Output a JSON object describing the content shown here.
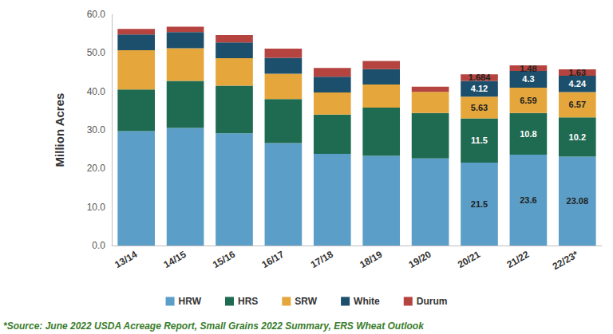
{
  "chart_data": {
    "type": "bar",
    "stacked": true,
    "grid": false,
    "legend": "bottom",
    "data_labels": true,
    "y_label": "Million Acres",
    "annotations": [
      "*Source: June 2022 USDA Acreage Report, Small Grains 2022 Summary, ERS Wheat Outlook"
    ],
    "categories": [
      "13/14",
      "14/15",
      "15/16",
      "16/17",
      "17/18",
      "18/19",
      "19/20",
      "20/21",
      "21/22",
      "22/23*"
    ],
    "ylim": [
      0,
      60
    ],
    "yticks": [
      {
        "value": 0,
        "label": "0.0"
      },
      {
        "value": 10,
        "label": "10.0"
      },
      {
        "value": 20,
        "label": "20.0"
      },
      {
        "value": 30,
        "label": "30.0"
      },
      {
        "value": 40,
        "label": "40.0"
      },
      {
        "value": 50,
        "label": "50.0"
      },
      {
        "value": 60,
        "label": "60.0"
      }
    ],
    "series": [
      {
        "name": "HRW",
        "color": "#5b9fc9",
        "values": [
          29.7,
          30.5,
          29.1,
          26.6,
          23.8,
          23.3,
          22.6,
          21.5,
          23.6,
          23.08
        ],
        "value_labels": [
          null,
          null,
          null,
          null,
          null,
          null,
          null,
          "21.5",
          "23.6",
          "23.08"
        ]
      },
      {
        "name": "HRS",
        "color": "#1f6b52",
        "values": [
          10.8,
          12.2,
          12.4,
          11.4,
          10.2,
          12.5,
          11.8,
          11.5,
          10.8,
          10.2
        ],
        "value_labels": [
          null,
          null,
          null,
          null,
          null,
          null,
          null,
          "11.5",
          "10.8",
          "10.2"
        ]
      },
      {
        "name": "SRW",
        "color": "#e5a63c",
        "values": [
          10.2,
          8.5,
          7.1,
          6.6,
          5.7,
          6.0,
          5.5,
          5.63,
          6.59,
          6.57
        ],
        "value_labels": [
          null,
          null,
          null,
          null,
          null,
          null,
          null,
          "5.63",
          "6.59",
          "6.57"
        ]
      },
      {
        "name": "White",
        "color": "#1c4f6b",
        "values": [
          4.1,
          4.2,
          4.1,
          4.1,
          4.1,
          4.0,
          null,
          4.12,
          4.3,
          4.24
        ],
        "value_labels": [
          null,
          null,
          null,
          null,
          null,
          null,
          null,
          "4.12",
          "4.3",
          "4.24"
        ]
      },
      {
        "name": "Durum",
        "color": "#b5433f",
        "values": [
          1.4,
          1.4,
          1.9,
          2.4,
          2.3,
          2.1,
          1.3,
          1.684,
          1.48,
          1.63
        ],
        "value_labels": [
          null,
          null,
          null,
          null,
          null,
          null,
          null,
          "1.684",
          "1.48",
          "1.63"
        ]
      }
    ]
  }
}
